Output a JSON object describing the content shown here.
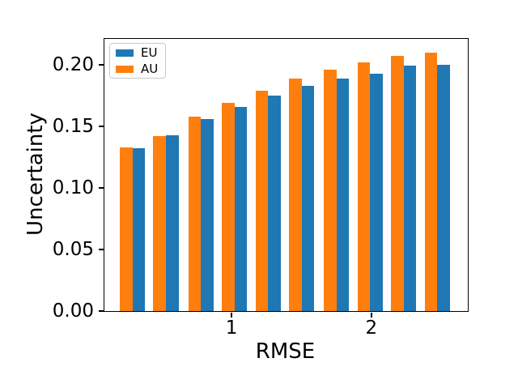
{
  "figure": {
    "xlabel": "RMSE",
    "ylabel": "Uncertainty",
    "background_color": "#ffffff",
    "spine_color": "#000000",
    "legend": {
      "position": "upper left",
      "entries": [
        {
          "label": "EU",
          "color": "#1f77b4"
        },
        {
          "label": "AU",
          "color": "#ff7f0e"
        }
      ]
    }
  },
  "chart_data": {
    "type": "bar",
    "title": "",
    "xlabel": "RMSE",
    "ylabel": "Uncertainty",
    "x": [
      0.29,
      0.53,
      0.78,
      1.02,
      1.26,
      1.5,
      1.75,
      1.99,
      2.23,
      2.47
    ],
    "series": [
      {
        "name": "EU",
        "color": "#1f77b4",
        "values": [
          0.132,
          0.143,
          0.156,
          0.166,
          0.175,
          0.183,
          0.189,
          0.193,
          0.199,
          0.2
        ]
      },
      {
        "name": "AU",
        "color": "#ff7f0e",
        "values": [
          0.133,
          0.142,
          0.158,
          0.169,
          0.179,
          0.189,
          0.196,
          0.202,
          0.207,
          0.21
        ]
      }
    ],
    "group_order_left_to_right": [
      "AU",
      "EU"
    ],
    "bar_width": 0.09,
    "xlim": [
      0.09,
      2.69
    ],
    "ylim": [
      0.0,
      0.221
    ],
    "xticks": [
      1,
      2
    ],
    "xticklabels": [
      "1",
      "2"
    ],
    "yticks": [
      0.0,
      0.05,
      0.1,
      0.15,
      0.2
    ],
    "yticklabels": [
      "0.00",
      "0.05",
      "0.10",
      "0.15",
      "0.20"
    ],
    "grid": false,
    "legend_position": "upper left"
  }
}
